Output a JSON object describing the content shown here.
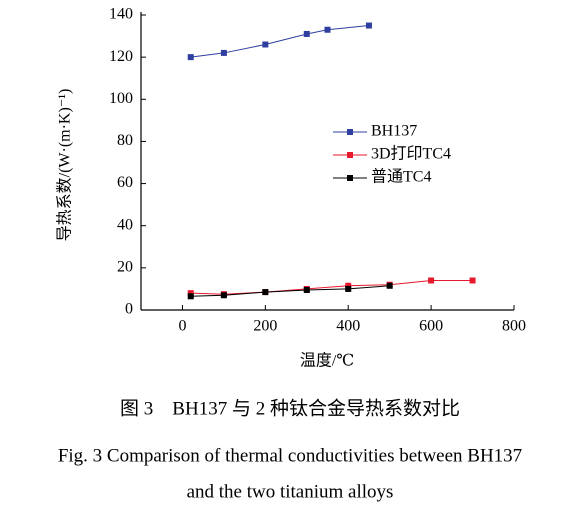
{
  "chart_data": {
    "type": "line",
    "xlabel": "温度/℃",
    "ylabel": "导热系数/(W·(m·K)⁻¹)",
    "xlim": [
      -100,
      800
    ],
    "xticks": [
      0,
      200,
      400,
      600,
      800
    ],
    "ylim": [
      0,
      140
    ],
    "yticks": [
      0,
      20,
      40,
      60,
      80,
      100,
      120,
      140
    ],
    "series": [
      {
        "name": "BH137",
        "color": "#2f3fa0",
        "x": [
          20,
          100,
          200,
          300,
          350,
          450
        ],
        "values": [
          120,
          122,
          126,
          131,
          133,
          135
        ]
      },
      {
        "name": "3D打印TC4",
        "color": "#e8192c",
        "x": [
          20,
          100,
          200,
          300,
          400,
          500,
          600,
          700
        ],
        "values": [
          8,
          7.5,
          8.5,
          10,
          11.5,
          12,
          14,
          14
        ]
      },
      {
        "name": "普通TC4",
        "color": "#000000",
        "x": [
          20,
          100,
          200,
          300,
          400,
          500
        ],
        "values": [
          6.5,
          7,
          8.5,
          9.5,
          10,
          11.5
        ]
      }
    ]
  },
  "caption": {
    "zh": "图 3　BH137 与 2 种钛合金导热系数对比",
    "en": [
      "Fig. 3 Comparison of thermal conductivities between BH137",
      "and the two titanium alloys"
    ]
  }
}
